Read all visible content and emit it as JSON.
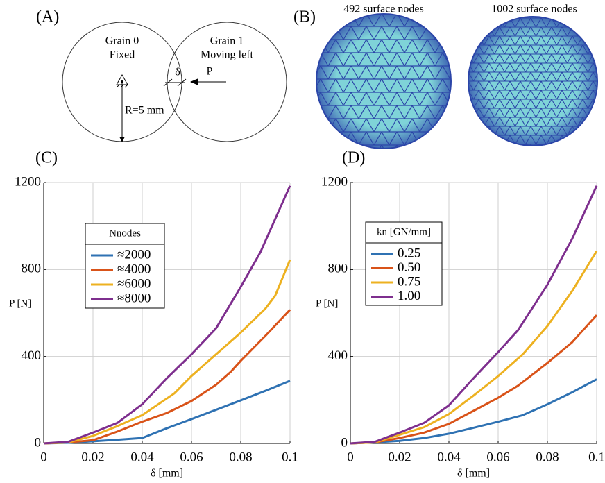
{
  "panel_a": {
    "panel_label": "(A)",
    "grain0_name": "Grain 0",
    "grain0_state": "Fixed",
    "grain1_name": "Grain 1",
    "grain1_state": "Moving left",
    "overlap": "δ",
    "force": "P",
    "radius": "R=5 mm"
  },
  "panel_b": {
    "panel_label": "(B)",
    "left_caption": "492 surface nodes",
    "right_caption": "1002 surface nodes"
  },
  "chart_data": [
    {
      "type": "line",
      "panel_label": "(C)",
      "x_label": "δ [mm]",
      "y_label": "P [N]",
      "legend_title": "Nnodes",
      "xlim": [
        0,
        0.1
      ],
      "xticks": [
        0,
        0.02,
        0.04,
        0.06,
        0.08,
        0.1
      ],
      "ylim": [
        0,
        1200
      ],
      "yticks": [
        0,
        400,
        800,
        1200
      ],
      "grid": true,
      "series": [
        {
          "name": "≈2000",
          "color": "#2f72b3",
          "x": [
            0,
            0.01,
            0.02,
            0.03,
            0.04,
            0.05,
            0.06,
            0.07,
            0.08,
            0.09,
            0.1
          ],
          "values": [
            0,
            3,
            10,
            17,
            25,
            70,
            112,
            155,
            198,
            242,
            288
          ]
        },
        {
          "name": "≈4000",
          "color": "#d95319",
          "x": [
            0,
            0.01,
            0.02,
            0.03,
            0.04,
            0.05,
            0.06,
            0.07,
            0.076,
            0.08,
            0.09,
            0.1
          ],
          "values": [
            0,
            5,
            15,
            55,
            100,
            140,
            195,
            270,
            330,
            380,
            495,
            615
          ]
        },
        {
          "name": "≈6000",
          "color": "#edb120",
          "x": [
            0,
            0.01,
            0.02,
            0.03,
            0.04,
            0.053,
            0.06,
            0.07,
            0.08,
            0.09,
            0.094,
            0.1
          ],
          "values": [
            0,
            5,
            35,
            80,
            130,
            230,
            310,
            410,
            510,
            620,
            680,
            845
          ]
        },
        {
          "name": "≈8000",
          "color": "#7e2f8e",
          "x": [
            0,
            0.01,
            0.02,
            0.03,
            0.04,
            0.05,
            0.06,
            0.07,
            0.08,
            0.088,
            0.1
          ],
          "values": [
            0,
            8,
            50,
            95,
            180,
            300,
            410,
            530,
            720,
            880,
            1185
          ]
        }
      ]
    },
    {
      "type": "line",
      "panel_label": "(D)",
      "x_label": "δ [mm]",
      "y_label": "P [N]",
      "legend_title": "kn [GN/mm]",
      "xlim": [
        0,
        0.1
      ],
      "xticks": [
        0,
        0.02,
        0.04,
        0.06,
        0.08,
        0.1
      ],
      "ylim": [
        0,
        1200
      ],
      "yticks": [
        0,
        400,
        800,
        1200
      ],
      "grid": true,
      "series": [
        {
          "name": "0.25",
          "color": "#2f72b3",
          "x": [
            0,
            0.01,
            0.02,
            0.03,
            0.04,
            0.05,
            0.06,
            0.07,
            0.08,
            0.09,
            0.1
          ],
          "values": [
            0,
            5,
            12,
            25,
            45,
            72,
            100,
            130,
            180,
            235,
            295
          ]
        },
        {
          "name": "0.50",
          "color": "#d95319",
          "x": [
            0,
            0.01,
            0.02,
            0.03,
            0.04,
            0.05,
            0.06,
            0.068,
            0.08,
            0.09,
            0.1
          ],
          "values": [
            0,
            5,
            25,
            50,
            90,
            150,
            210,
            265,
            370,
            465,
            590
          ]
        },
        {
          "name": "0.75",
          "color": "#edb120",
          "x": [
            0,
            0.01,
            0.02,
            0.03,
            0.04,
            0.05,
            0.06,
            0.07,
            0.08,
            0.09,
            0.1
          ],
          "values": [
            0,
            5,
            40,
            75,
            135,
            220,
            310,
            410,
            540,
            700,
            885
          ]
        },
        {
          "name": "1.00",
          "color": "#7e2f8e",
          "x": [
            0,
            0.01,
            0.02,
            0.03,
            0.04,
            0.05,
            0.06,
            0.068,
            0.08,
            0.09,
            0.1
          ],
          "values": [
            0,
            8,
            50,
            95,
            175,
            300,
            420,
            520,
            730,
            940,
            1185
          ]
        }
      ]
    }
  ]
}
